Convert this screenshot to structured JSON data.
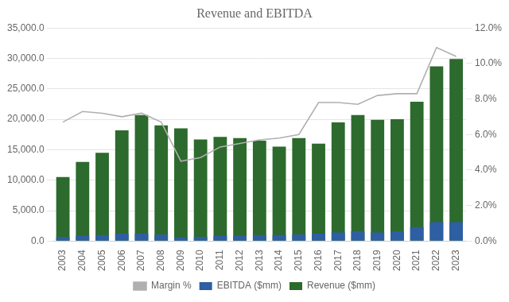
{
  "chart_data": {
    "type": "bar",
    "title": "Revenue and EBITDA",
    "categories": [
      "2003",
      "2004",
      "2005",
      "2006",
      "2007",
      "2008",
      "2009",
      "2010",
      "2011",
      "2012",
      "2013",
      "2014",
      "2015",
      "2016",
      "2017",
      "2018",
      "2019",
      "2020",
      "2021",
      "2022",
      "2023"
    ],
    "series": [
      {
        "name": "Revenue ($mm)",
        "color": "#2d6a2d",
        "values": [
          10500,
          13000,
          14500,
          18200,
          20700,
          19000,
          18500,
          16700,
          17100,
          16900,
          16500,
          15500,
          16900,
          16000,
          19500,
          20700,
          19900,
          20000,
          22900,
          28700,
          29900
        ]
      },
      {
        "name": "EBITDA ($mm)",
        "color": "#2e5fa3",
        "values": [
          700,
          900,
          1000,
          1200,
          1200,
          1100,
          600,
          700,
          900,
          900,
          1000,
          1000,
          1100,
          1200,
          1400,
          1600,
          1400,
          1600,
          2300,
          3100,
          3100
        ]
      },
      {
        "name": "Margin %",
        "type": "line",
        "axis": "y2",
        "color": "#b0b0b0",
        "values": [
          0.067,
          0.073,
          0.072,
          0.07,
          0.072,
          0.067,
          0.045,
          0.047,
          0.053,
          0.055,
          0.057,
          0.058,
          0.06,
          0.078,
          0.078,
          0.077,
          0.082,
          0.083,
          0.083,
          0.109,
          0.104
        ]
      }
    ],
    "ylim": [
      0,
      35000
    ],
    "yticks": [
      {
        "value": 0,
        "label": "0.0"
      },
      {
        "value": 5000,
        "label": "5,000.0"
      },
      {
        "value": 10000,
        "label": "10,000.0"
      },
      {
        "value": 15000,
        "label": "15,000.0"
      },
      {
        "value": 20000,
        "label": "20,000.0"
      },
      {
        "value": 25000,
        "label": "25,000.0"
      },
      {
        "value": 30000,
        "label": "30,000.0"
      },
      {
        "value": 35000,
        "label": "35,000.0"
      }
    ],
    "y2lim": [
      0,
      0.12
    ],
    "y2ticks": [
      {
        "value": 0.0,
        "label": "0.0%"
      },
      {
        "value": 0.02,
        "label": "2.0%"
      },
      {
        "value": 0.04,
        "label": "4.0%"
      },
      {
        "value": 0.06,
        "label": "6.0%"
      },
      {
        "value": 0.08,
        "label": "8.0%"
      },
      {
        "value": 0.1,
        "label": "10.0%"
      },
      {
        "value": 0.12,
        "label": "12.0%"
      }
    ],
    "grid": true,
    "legend": "bottom"
  }
}
